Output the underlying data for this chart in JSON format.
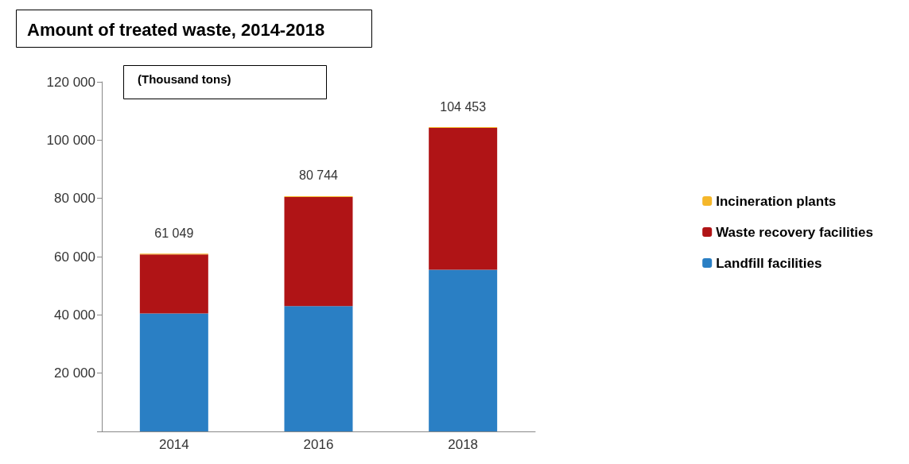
{
  "chart_data": {
    "type": "bar",
    "title": "Amount of treated waste, 2014-2018",
    "subtitle": "(Thousand tons)",
    "categories": [
      "2014",
      "2016",
      "2018"
    ],
    "series": [
      {
        "name": "Landfill facilities",
        "color": "#2a7fc4",
        "values": [
          40500,
          43000,
          55500
        ]
      },
      {
        "name": "Waste recovery facilities",
        "color": "#b01416",
        "values": [
          20249,
          37444,
          48653
        ]
      },
      {
        "name": "Incineration plants",
        "color": "#f5b72a",
        "values": [
          300,
          300,
          300
        ]
      }
    ],
    "stacked": true,
    "totals": [
      "61 049",
      "80 744",
      "104 453"
    ],
    "ylim": [
      0,
      120000
    ],
    "yticks": [
      {
        "value": 0,
        "label": null
      },
      {
        "value": 20000,
        "label": "20 000"
      },
      {
        "value": 40000,
        "label": "40 000"
      },
      {
        "value": 60000,
        "label": "60 000"
      },
      {
        "value": 80000,
        "label": "80 000"
      },
      {
        "value": 100000,
        "label": "100 000"
      },
      {
        "value": 120000,
        "label": "120 000"
      }
    ],
    "grid": false,
    "legend": "right"
  }
}
